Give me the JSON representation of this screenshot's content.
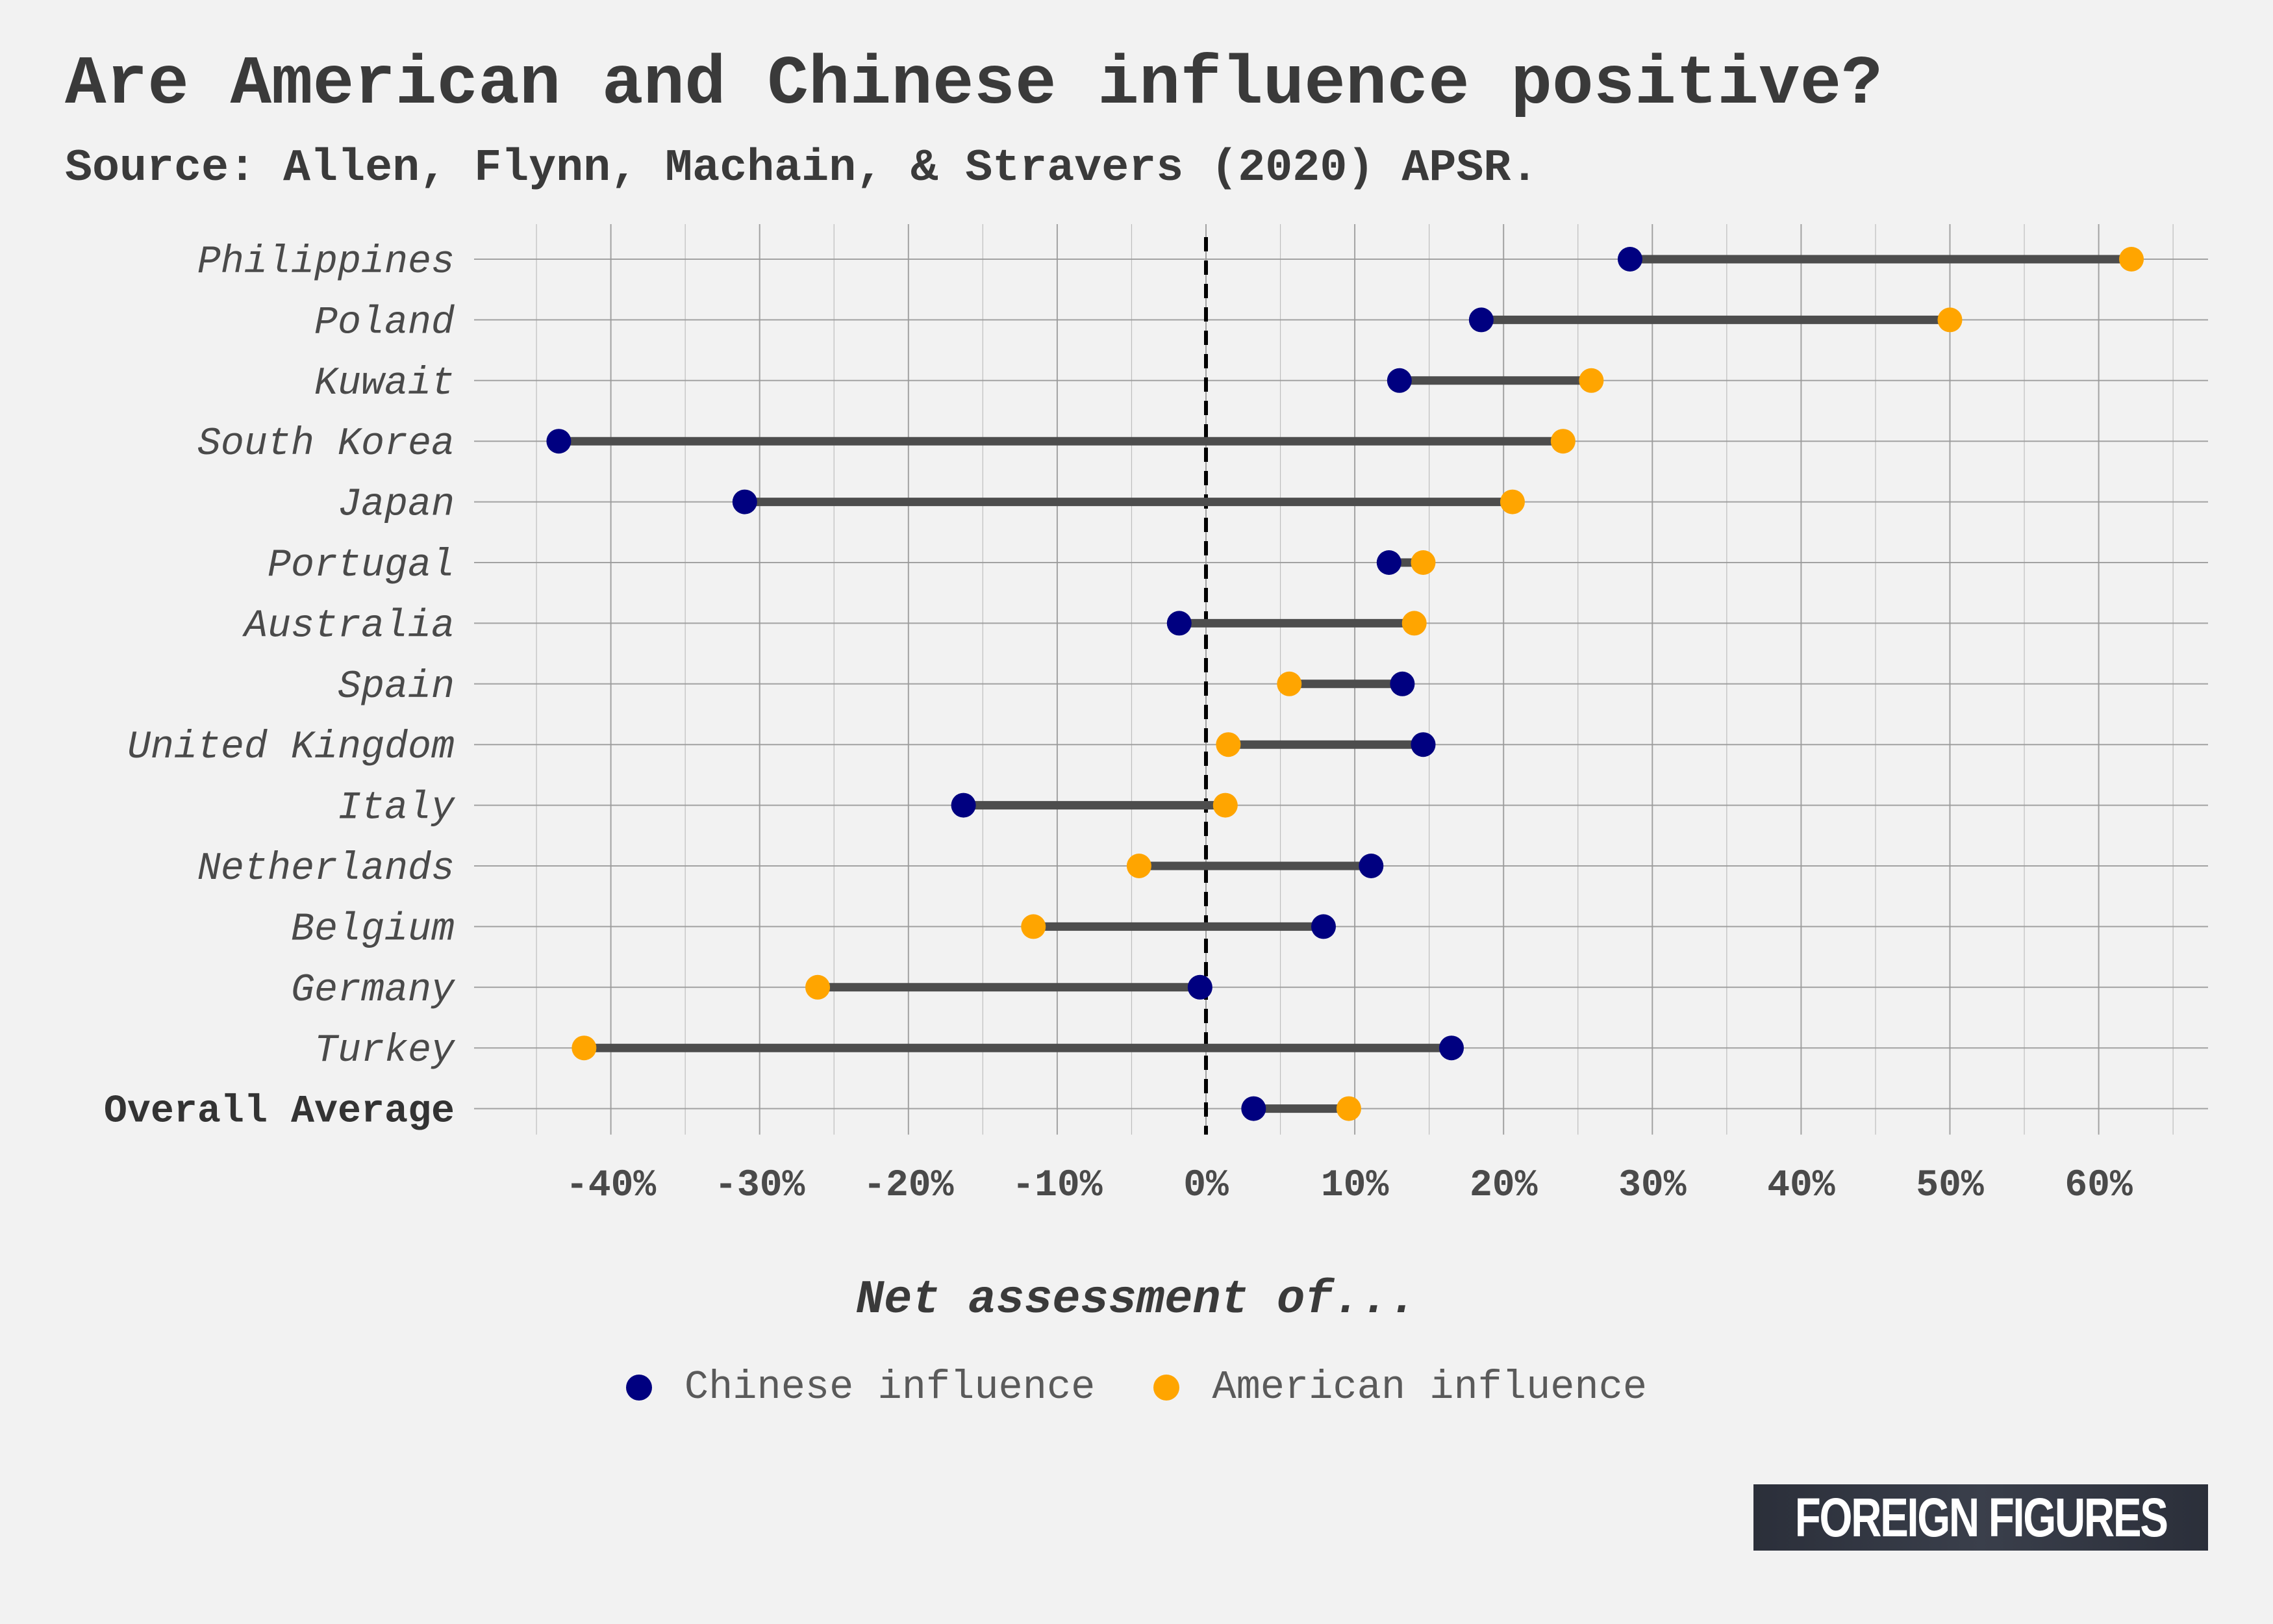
{
  "title": "Are American and Chinese influence positive?",
  "subtitle": "Source: Allen, Flynn, Machain, & Stravers (2020) APSR.",
  "legend": {
    "title": "Net assessment of...",
    "items": [
      {
        "label": "Chinese influence",
        "color": "#000080"
      },
      {
        "label": "American influence",
        "color": "#ffa500"
      }
    ]
  },
  "brand": "FOREIGN FIGURES",
  "colors": {
    "segment": "#4d4d4d",
    "zero_line": "#000000",
    "grid": "#9a9a9a"
  },
  "chart_data": {
    "type": "dumbbell",
    "xlabel": "Net assessment of...",
    "xlim": [
      -47,
      67
    ],
    "xticks": [
      -40,
      -30,
      -20,
      -10,
      0,
      10,
      20,
      30,
      40,
      50,
      60
    ],
    "xtick_labels": [
      "-40%",
      "-30%",
      "-20%",
      "-10%",
      "0%",
      "10%",
      "20%",
      "30%",
      "40%",
      "50%",
      "60%"
    ],
    "reference_line": 0,
    "grid": true,
    "categories": [
      "Philippines",
      "Poland",
      "Kuwait",
      "South Korea",
      "Japan",
      "Portugal",
      "Australia",
      "Spain",
      "United Kingdom",
      "Italy",
      "Netherlands",
      "Belgium",
      "Germany",
      "Turkey",
      "Overall Average"
    ],
    "bold_categories": [
      "Overall Average"
    ],
    "series": [
      {
        "name": "Chinese influence",
        "color": "#000080",
        "values": [
          28.5,
          18.5,
          13,
          -43.5,
          -31,
          12.3,
          -1.8,
          13.2,
          14.6,
          -16.3,
          11.1,
          7.9,
          -0.4,
          16.5,
          3.2
        ]
      },
      {
        "name": "American influence",
        "color": "#ffa500",
        "values": [
          62.2,
          50,
          25.9,
          24,
          20.6,
          14.6,
          14,
          5.6,
          1.5,
          1.3,
          -4.5,
          -11.6,
          -26.1,
          -41.8,
          9.6
        ]
      }
    ]
  }
}
